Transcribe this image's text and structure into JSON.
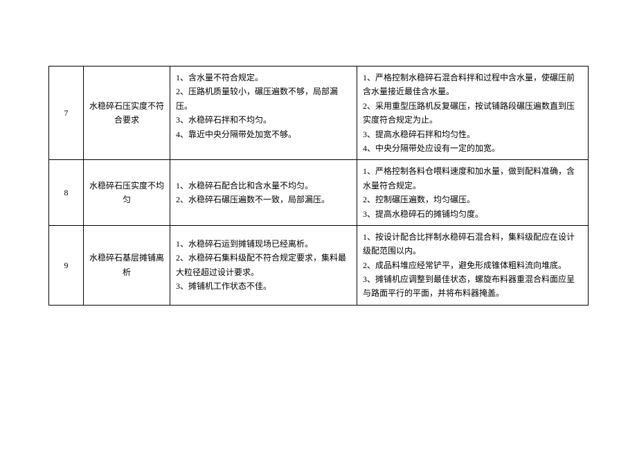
{
  "table": {
    "rows": [
      {
        "num": "7",
        "title": "水稳碎石压实度不符合要求",
        "causes": "1、含水量不符合规定。\n2、压路机质量较小，碾压遍数不够，局部漏压。\n3、水稳碎石拌和不均匀。\n4、靠近中央分隔带处加宽不够。",
        "measures": "1、严格控制水稳碎石混合料拌和过程中含水量，使碾压前含水量接近最佳含水量。\n2、采用重型压路机反复碾压，按试铺路段碾压遍数直到压实度符合规定为止。\n3、提高水稳碎石拌和均匀性。\n4、中央分隔带处应设有一定的加宽。"
      },
      {
        "num": "8",
        "title": "水稳碎石压实度不均匀",
        "causes": "1、水稳碎石配合比和含水量不均匀。\n2、水稳碎石碾压遍数不一致，局部漏压。",
        "measures": "1、严格控制各料仓喂料速度和加水量，做到配料准确，含水量符合规定。\n2、控制碾压遍数，均匀碾压。\n3、提高水稳碎石的摊铺均匀度。"
      },
      {
        "num": "9",
        "title": "水稳碎石基层摊铺离析",
        "causes": "1、水稳碎石运到摊铺现场已经离析。\n2、水稳碎石集料级配不符合规定要求，集料最大粒径超过设计要求。\n3、摊铺机工作状态不佳。",
        "measures": "1、按设计配合比拌制水稳碎石混合料，集料级配应在设计级配范围以内。\n2、成品料堆应经常铲平，避免形成锥体粗料流向堆底。\n3、摊铺机应调整到最佳状态，螺旋布料器重混合料面应呈与路面平行的平面，并将布料器掩盖。"
      }
    ]
  },
  "style": {
    "background_color": "#ffffff",
    "border_color": "#000000",
    "text_color": "#000000",
    "font_size": 12
  }
}
